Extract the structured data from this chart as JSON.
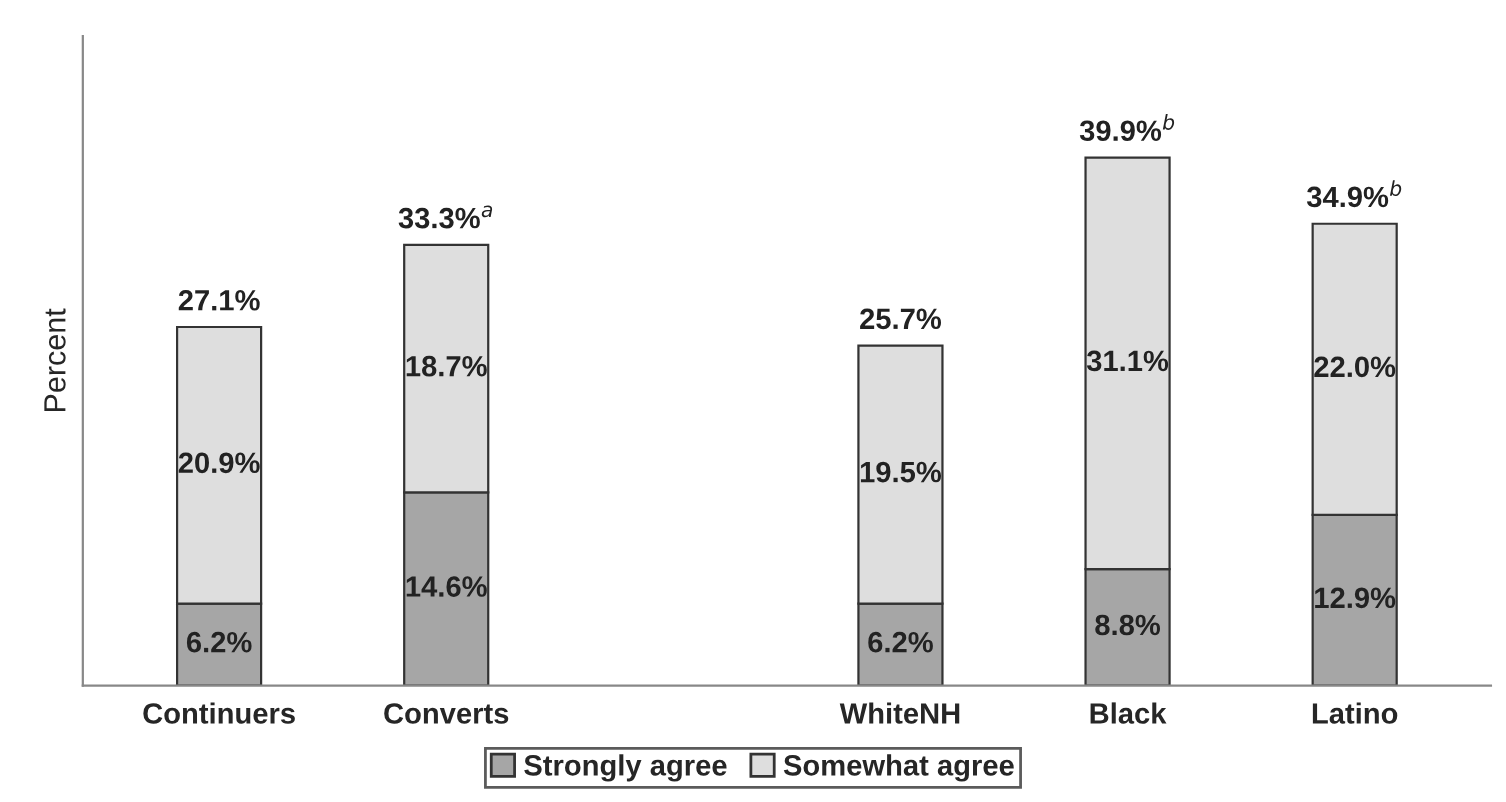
{
  "chart_data": {
    "type": "bar",
    "stacked": true,
    "ylabel": "Percent",
    "categories": [
      "Continuers",
      "Converts",
      null,
      "WhiteNH",
      "Black",
      "Latino"
    ],
    "series": [
      {
        "name": "Strongly agree",
        "color": "#a6a6a6",
        "values": [
          6.2,
          14.6,
          null,
          6.2,
          8.8,
          12.9
        ],
        "value_labels": [
          "6.2%",
          "14.6%",
          null,
          "6.2%",
          "8.8%",
          "12.9%"
        ]
      },
      {
        "name": "Somewhat agree",
        "color": "#dedede",
        "values": [
          20.9,
          18.7,
          null,
          19.5,
          31.1,
          22.0
        ],
        "value_labels": [
          "20.9%",
          "18.7%",
          null,
          "19.5%",
          "31.1%",
          "22.0%"
        ]
      }
    ],
    "totals": [
      "27.1%",
      "33.3%$^{a}$",
      null,
      "25.7%",
      "39.9%$^{b}$",
      "34.9%$^{b}$"
    ],
    "grid": false,
    "legend": "bottom"
  }
}
